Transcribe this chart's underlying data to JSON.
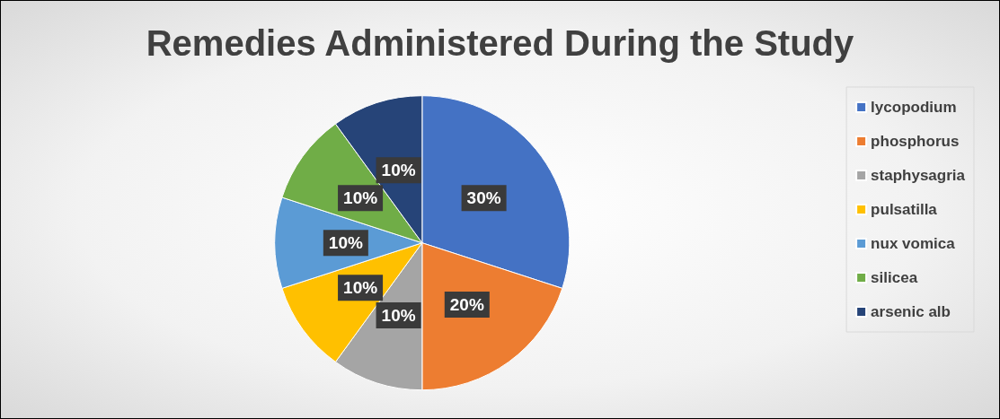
{
  "chart_data": {
    "type": "pie",
    "title": "Remedies Administered During the Study",
    "categories": [
      "lycopodium",
      "phosphorus",
      "staphysagria",
      "pulsatilla",
      "nux vomica",
      "silicea",
      "arsenic alb"
    ],
    "values": [
      30,
      20,
      10,
      10,
      10,
      10,
      10
    ],
    "colors": [
      "#4472c4",
      "#ed7d31",
      "#a5a5a5",
      "#ffc000",
      "#5b9bd5",
      "#70ad47",
      "#264478"
    ],
    "value_labels": [
      "30%",
      "20%",
      "10%",
      "10%",
      "10%",
      "10%",
      "10%"
    ],
    "legend": "right"
  }
}
